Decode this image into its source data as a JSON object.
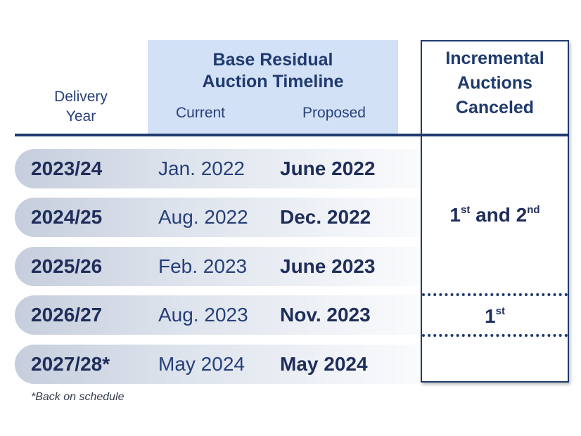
{
  "header": {
    "delivery_year": "Delivery Year",
    "brat_title_line1": "Base Residual",
    "brat_title_line2": "Auction Timeline",
    "current": "Current",
    "proposed": "Proposed",
    "incremental_line1": "Incremental",
    "incremental_line2": "Auctions",
    "incremental_line3": "Canceled"
  },
  "rows": [
    {
      "year": "2023/24",
      "current": "Jan. 2022",
      "proposed": "June 2022"
    },
    {
      "year": "2024/25",
      "current": "Aug. 2022",
      "proposed": "Dec. 2022"
    },
    {
      "year": "2025/26",
      "current": "Feb. 2023",
      "proposed": "June 2023"
    },
    {
      "year": "2026/27",
      "current": "Aug. 2023",
      "proposed": "Nov. 2023"
    },
    {
      "year": "2027/28*",
      "current": "May 2024",
      "proposed": "May 2024"
    }
  ],
  "incremental": {
    "group1_num1": "1",
    "group1_sup1": "st",
    "group1_mid": " and 2",
    "group1_sup2": "nd",
    "group2_num": "1",
    "group2_sup": "st"
  },
  "footnote": "*Back on schedule"
}
